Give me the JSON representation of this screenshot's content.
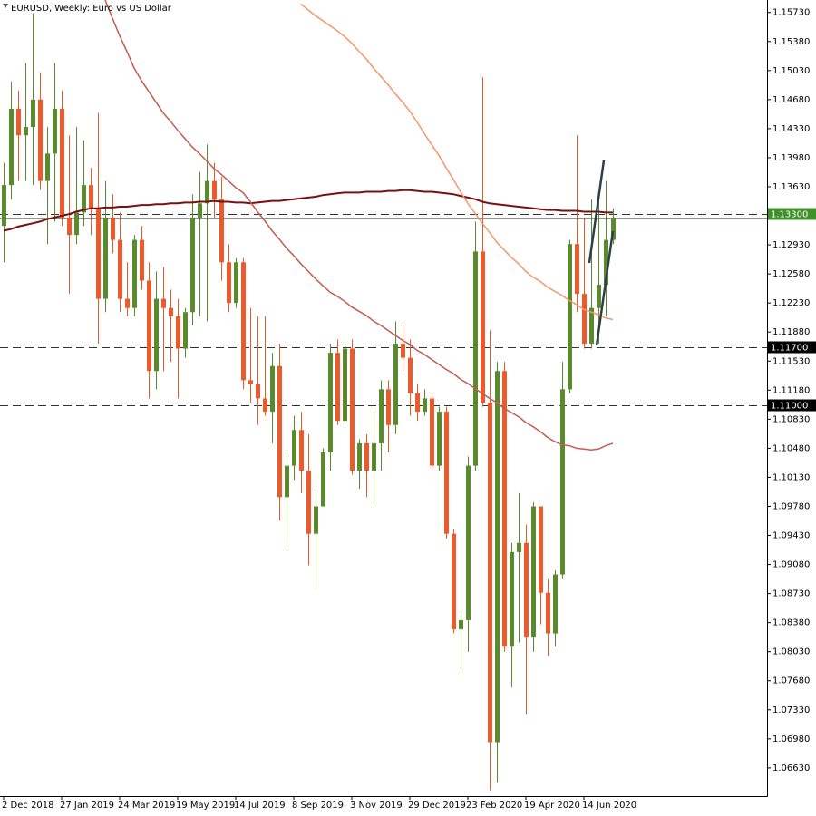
{
  "chart_data": {
    "type": "candlestick",
    "title": "EURUSD, Weekly:  Euro vs US Dollar",
    "categories": [
      "2 Dec 2018",
      null,
      null,
      null,
      null,
      null,
      null,
      null,
      "27 Jan 2019",
      null,
      null,
      null,
      null,
      null,
      null,
      null,
      "24 Mar 2019",
      null,
      null,
      null,
      null,
      null,
      null,
      null,
      "19 May 2019",
      null,
      null,
      null,
      null,
      null,
      null,
      null,
      "14 Jul 2019",
      null,
      null,
      null,
      null,
      null,
      null,
      null,
      "8 Sep 2019",
      null,
      null,
      null,
      null,
      null,
      null,
      null,
      "3 Nov 2019",
      null,
      null,
      null,
      null,
      null,
      null,
      null,
      "29 Dec 2019",
      null,
      null,
      null,
      null,
      null,
      null,
      null,
      "23 Feb 2020",
      null,
      null,
      null,
      null,
      null,
      null,
      null,
      "19 Apr 2020",
      null,
      null,
      null,
      null,
      null,
      null,
      null,
      "14 Jun 2020",
      null,
      null,
      null,
      null
    ],
    "open": [
      1.1316,
      1.1365,
      1.1457,
      1.1425,
      1.1435,
      1.1468,
      1.137,
      1.1403,
      1.1457,
      1.1326,
      1.1305,
      1.1332,
      1.1365,
      1.1337,
      1.1228,
      1.1326,
      1.1299,
      1.1228,
      1.1217,
      1.1299,
      1.125,
      1.1141,
      1.1228,
      1.1217,
      1.1207,
      1.1168,
      1.1212,
      1.1326,
      1.1343,
      1.137,
      1.1348,
      1.1272,
      1.1223,
      1.1272,
      1.113,
      1.1125,
      1.1108,
      1.1092,
      1.1147,
      1.0989,
      1.1027,
      1.107,
      1.1021,
      1.0945,
      1.0978,
      1.1043,
      1.1163,
      1.1081,
      1.1168,
      1.1021,
      1.1054,
      1.1021,
      1.1054,
      1.1119,
      1.1076,
      1.1174,
      1.1157,
      1.1114,
      1.1092,
      1.1108,
      1.1027,
      1.1092,
      1.0945,
      1.083,
      1.0841,
      1.1027,
      1.1285,
      1.1103,
      1.0694,
      1.1141,
      1.0809,
      1.0923,
      1.0934,
      1.082,
      1.0978,
      1.0874,
      1.0825,
      1.0896,
      1.1119,
      1.1294,
      1.1234,
      1.1174,
      1.1217,
      1.1245,
      1.1299
    ],
    "high": [
      1.1392,
      1.149,
      1.1479,
      1.1512,
      1.1572,
      1.1501,
      1.1435,
      1.1512,
      1.1479,
      1.1425,
      1.1435,
      1.1419,
      1.1386,
      1.1452,
      1.137,
      1.1354,
      1.1332,
      1.1272,
      1.1305,
      1.1316,
      1.1272,
      1.1261,
      1.1266,
      1.1239,
      1.1228,
      1.1217,
      1.1354,
      1.1381,
      1.1414,
      1.1392,
      1.1375,
      1.1294,
      1.1277,
      1.1277,
      1.1217,
      1.1207,
      1.1207,
      1.1163,
      1.1174,
      1.1043,
      1.1087,
      1.1092,
      1.1065,
      1.0999,
      1.1048,
      1.1174,
      1.1179,
      1.1174,
      1.1179,
      1.1059,
      1.1065,
      1.1098,
      1.113,
      1.113,
      1.1201,
      1.1196,
      1.1179,
      1.1125,
      1.1119,
      1.1114,
      1.1098,
      1.1098,
      1.095,
      1.0852,
      1.1038,
      1.1321,
      1.1495,
      1.119,
      1.1152,
      1.1152,
      1.0934,
      1.0994,
      1.0956,
      1.0983,
      1.0978,
      1.089,
      1.0901,
      1.1152,
      1.1299,
      1.1425,
      1.1326,
      1.1348,
      1.1354,
      1.137,
      1.1337
    ],
    "low": [
      1.1272,
      1.1348,
      1.137,
      1.137,
      1.1365,
      1.1359,
      1.1294,
      1.1321,
      1.1316,
      1.1234,
      1.1294,
      1.1316,
      1.1305,
      1.1174,
      1.1212,
      1.1283,
      1.1212,
      1.1207,
      1.1207,
      1.1239,
      1.1108,
      1.1119,
      1.1141,
      1.1152,
      1.1108,
      1.1157,
      1.1196,
      1.1207,
      1.1201,
      1.1326,
      1.125,
      1.1212,
      1.1217,
      1.1119,
      1.1103,
      1.1076,
      1.1087,
      1.1054,
      1.0961,
      1.0929,
      1.101,
      1.0994,
      1.0907,
      1.088,
      1.0978,
      1.1021,
      1.1076,
      1.1076,
      1.1016,
      1.0999,
      1.0989,
      1.0978,
      1.1021,
      1.1043,
      1.1065,
      1.1141,
      1.1087,
      1.1081,
      1.1087,
      1.1021,
      1.1021,
      1.0939,
      1.0825,
      1.0776,
      1.0803,
      1.1021,
      1.1098,
      1.0636,
      1.0645,
      1.0803,
      1.076,
      1.0814,
      1.0727,
      1.0803,
      1.0836,
      1.0798,
      1.0809,
      1.089,
      1.1114,
      1.1212,
      1.1168,
      1.1168,
      1.1174,
      1.1207,
      1.1294
    ],
    "close": [
      1.1365,
      1.1457,
      1.1425,
      1.1435,
      1.1468,
      1.137,
      1.1403,
      1.1457,
      1.1326,
      1.1305,
      1.1332,
      1.1365,
      1.1337,
      1.1228,
      1.1326,
      1.1299,
      1.1228,
      1.1217,
      1.1299,
      1.125,
      1.1141,
      1.1228,
      1.1217,
      1.1207,
      1.1168,
      1.1212,
      1.1326,
      1.1343,
      1.137,
      1.1348,
      1.1272,
      1.1223,
      1.1272,
      1.113,
      1.1125,
      1.1108,
      1.1092,
      1.1147,
      1.0989,
      1.1027,
      1.107,
      1.1021,
      1.0945,
      1.0978,
      1.1043,
      1.1163,
      1.1081,
      1.1168,
      1.1021,
      1.1054,
      1.1021,
      1.1054,
      1.1119,
      1.1076,
      1.1174,
      1.1157,
      1.1114,
      1.1092,
      1.1108,
      1.1027,
      1.1092,
      1.0945,
      1.083,
      1.0841,
      1.1027,
      1.1285,
      1.1103,
      1.0694,
      1.1141,
      1.0809,
      1.0923,
      1.0934,
      1.082,
      1.0978,
      1.0874,
      1.0825,
      1.0896,
      1.1119,
      1.1294,
      1.1234,
      1.1174,
      1.1217,
      1.1245,
      1.1299,
      1.1326
    ],
    "up_color": "#5a8a2e",
    "down_color": "#ec5a2c",
    "lines": [
      {
        "color": "#7b1010",
        "values": [
          1.131,
          1.1312,
          1.1315,
          1.1317,
          1.1319,
          1.1321,
          1.1324,
          1.1326,
          1.1328,
          1.133,
          1.1333,
          1.1335,
          1.1337,
          1.1337,
          1.1338,
          1.1338,
          1.1339,
          1.1339,
          1.134,
          1.1341,
          1.1341,
          1.1342,
          1.1342,
          1.1343,
          1.1343,
          1.1344,
          1.1344,
          1.1345,
          1.1345,
          1.1346,
          1.1345,
          1.1345,
          1.1344,
          1.1344,
          1.1343,
          1.1344,
          1.1345,
          1.1346,
          1.1346,
          1.1347,
          1.1348,
          1.1349,
          1.135,
          1.1351,
          1.1353,
          1.1354,
          1.1355,
          1.1356,
          1.1356,
          1.1356,
          1.1357,
          1.1357,
          1.1357,
          1.1358,
          1.1358,
          1.1359,
          1.1359,
          1.1358,
          1.1357,
          1.1357,
          1.1356,
          1.1355,
          1.1354,
          1.1352,
          1.135,
          1.1348,
          1.1345,
          1.1343,
          1.1342,
          1.1341,
          1.134,
          1.1339,
          1.1338,
          1.1337,
          1.1336,
          1.1335,
          1.1335,
          1.1334,
          1.1334,
          1.1334,
          1.1333,
          1.1333,
          1.1333,
          1.1332,
          1.1332
        ]
      },
      {
        "color": "#c65a50",
        "values": [
          null,
          null,
          null,
          null,
          null,
          null,
          null,
          null,
          null,
          null,
          null,
          null,
          null,
          null,
          1.1588,
          1.1566,
          1.1545,
          1.1526,
          1.1506,
          1.1491,
          1.1478,
          1.1465,
          1.1452,
          1.1442,
          1.1431,
          1.1421,
          1.1411,
          1.1403,
          1.1394,
          1.1385,
          1.1378,
          1.137,
          1.1362,
          1.1356,
          1.1345,
          1.1333,
          1.1322,
          1.131,
          1.13,
          1.1289,
          1.128,
          1.127,
          1.1261,
          1.1252,
          1.1244,
          1.1236,
          1.1231,
          1.1225,
          1.1218,
          1.1213,
          1.1208,
          1.1201,
          1.1196,
          1.119,
          1.1184,
          1.1178,
          1.1173,
          1.1166,
          1.1161,
          1.1155,
          1.1149,
          1.1143,
          1.1138,
          1.1131,
          1.1126,
          1.112,
          1.1114,
          1.1108,
          1.1103,
          1.1096,
          1.1091,
          1.1086,
          1.1079,
          1.1074,
          1.1068,
          1.1061,
          1.1056,
          1.1052,
          1.1051,
          1.1048,
          1.1047,
          1.1046,
          1.1047,
          1.1051,
          1.1054
        ]
      },
      {
        "color": "#f4976c",
        "values": [
          null,
          null,
          null,
          null,
          null,
          null,
          null,
          null,
          null,
          null,
          null,
          null,
          null,
          null,
          null,
          null,
          null,
          null,
          null,
          null,
          null,
          null,
          null,
          null,
          null,
          null,
          null,
          null,
          null,
          null,
          null,
          null,
          null,
          null,
          null,
          null,
          null,
          null,
          null,
          null,
          null,
          1.1583,
          1.1576,
          1.1569,
          1.1563,
          1.1557,
          1.1551,
          1.1544,
          1.1536,
          1.1526,
          1.1517,
          1.1506,
          1.1496,
          1.1486,
          1.1475,
          1.1465,
          1.1454,
          1.1441,
          1.1427,
          1.1414,
          1.1401,
          1.1386,
          1.1372,
          1.1357,
          1.1343,
          1.1331,
          1.1319,
          1.1308,
          1.1296,
          1.1287,
          1.1278,
          1.127,
          1.1261,
          1.1254,
          1.1249,
          1.1242,
          1.1237,
          1.1232,
          1.1226,
          1.1221,
          1.1215,
          1.1212,
          1.1209,
          1.1205,
          1.1203
        ]
      }
    ],
    "hlines": [
      {
        "value": 1.133,
        "label": "1.13300",
        "color": "#3f8f2a"
      },
      {
        "value": 1.117,
        "label": "1.11700",
        "color": "#000000"
      },
      {
        "value": 1.11,
        "label": "1.11000",
        "color": "#000000"
      }
    ],
    "ylim": [
      1.0629,
      1.1588
    ],
    "yticks": [
      {
        "value": 1.1573,
        "label": "1.15730"
      },
      {
        "value": 1.1538,
        "label": "1.15380"
      },
      {
        "value": 1.1503,
        "label": "1.15030"
      },
      {
        "value": 1.1468,
        "label": "1.14680"
      },
      {
        "value": 1.1433,
        "label": "1.14330"
      },
      {
        "value": 1.1398,
        "label": "1.13980"
      },
      {
        "value": 1.1363,
        "label": "1.13630"
      },
      {
        "value": 1.1293,
        "label": "1.12930"
      },
      {
        "value": 1.1258,
        "label": "1.12580"
      },
      {
        "value": 1.1223,
        "label": "1.12230"
      },
      {
        "value": 1.1188,
        "label": "1.11880"
      },
      {
        "value": 1.1153,
        "label": "1.11530"
      },
      {
        "value": 1.1118,
        "label": "1.11180"
      },
      {
        "value": 1.1083,
        "label": "1.10830"
      },
      {
        "value": 1.1048,
        "label": "1.10480"
      },
      {
        "value": 1.1013,
        "label": "1.10130"
      },
      {
        "value": 1.0978,
        "label": "1.09780"
      },
      {
        "value": 1.0943,
        "label": "1.09430"
      },
      {
        "value": 1.0908,
        "label": "1.09080"
      },
      {
        "value": 1.0873,
        "label": "1.08730"
      },
      {
        "value": 1.0838,
        "label": "1.08380"
      },
      {
        "value": 1.0803,
        "label": "1.08030"
      },
      {
        "value": 1.0768,
        "label": "1.07680"
      },
      {
        "value": 1.0733,
        "label": "1.07330"
      },
      {
        "value": 1.0698,
        "label": "1.06980"
      },
      {
        "value": 1.0663,
        "label": "1.06630"
      }
    ]
  }
}
